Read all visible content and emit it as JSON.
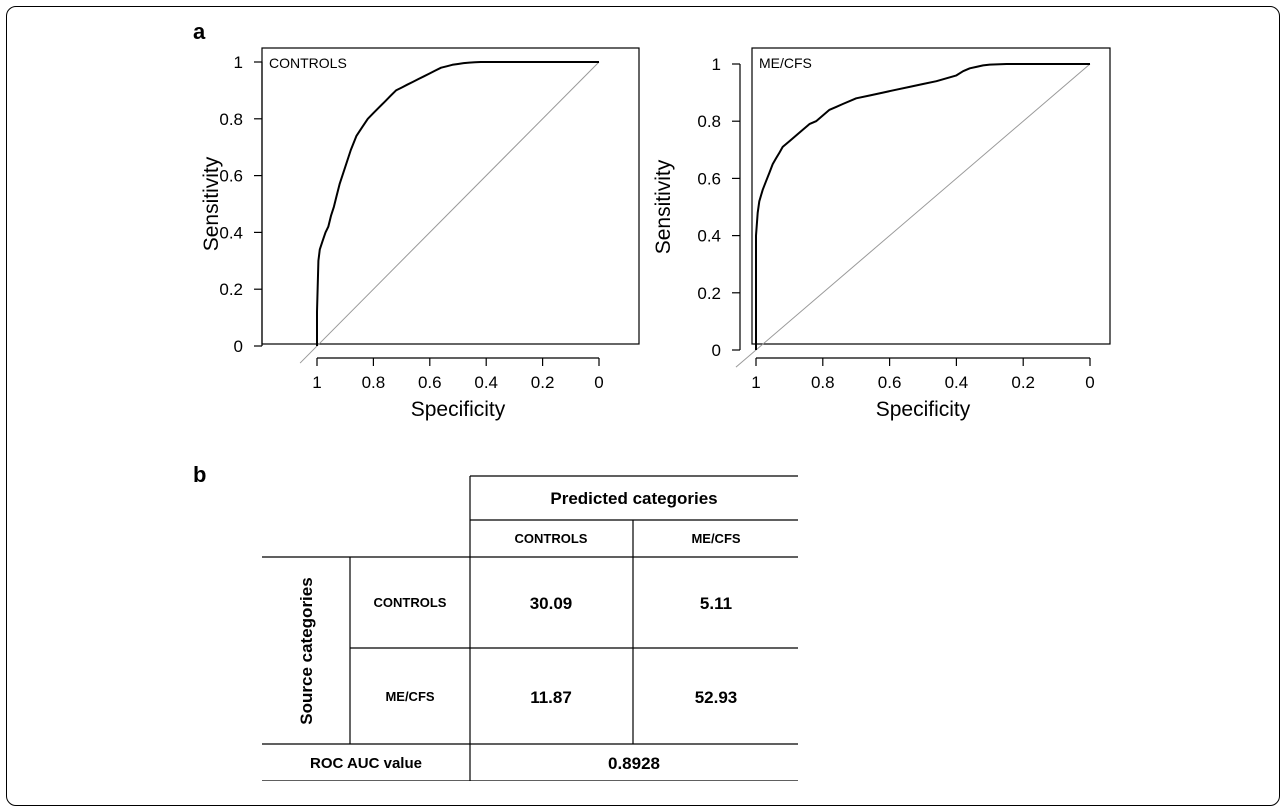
{
  "panel_a_label": "a",
  "panel_b_label": "b",
  "chart_data": [
    {
      "type": "line",
      "panel_text": "CONTROLS",
      "xlabel": "Specificity",
      "ylabel": "Sensitivity",
      "x_reversed": true,
      "xlim": [
        1,
        0
      ],
      "ylim": [
        0,
        1
      ],
      "xticks": [
        "1",
        "0.8",
        "0.6",
        "0.4",
        "0.2",
        "0"
      ],
      "yticks": [
        "0",
        "0.2",
        "0.4",
        "0.6",
        "0.8",
        "1"
      ],
      "series": [
        {
          "specificity": [
            1.0,
            1.0,
            0.995,
            0.99,
            0.98,
            0.97,
            0.96,
            0.95,
            0.94,
            0.93,
            0.92,
            0.9,
            0.88,
            0.86,
            0.84,
            0.82,
            0.8,
            0.78,
            0.76,
            0.74,
            0.72,
            0.7,
            0.68,
            0.66,
            0.64,
            0.62,
            0.6,
            0.58,
            0.56,
            0.54,
            0.52,
            0.5,
            0.48,
            0.46,
            0.44,
            0.42,
            0.4,
            0.38,
            0.36,
            0.3,
            0.2,
            0.1,
            0.0
          ],
          "sensitivity": [
            0.0,
            0.12,
            0.3,
            0.34,
            0.37,
            0.4,
            0.42,
            0.46,
            0.49,
            0.53,
            0.57,
            0.63,
            0.69,
            0.74,
            0.77,
            0.8,
            0.82,
            0.84,
            0.86,
            0.88,
            0.9,
            0.91,
            0.92,
            0.93,
            0.94,
            0.95,
            0.96,
            0.97,
            0.98,
            0.985,
            0.99,
            0.993,
            0.996,
            0.998,
            0.999,
            1.0,
            1.0,
            1.0,
            1.0,
            1.0,
            1.0,
            1.0,
            1.0
          ]
        }
      ],
      "reference_line": "diagonal"
    },
    {
      "type": "line",
      "panel_text": "ME/CFS",
      "xlabel": "Specificity",
      "ylabel": "Sensitivity",
      "x_reversed": true,
      "xlim": [
        1,
        0
      ],
      "ylim": [
        0,
        1
      ],
      "xticks": [
        "1",
        "0.8",
        "0.6",
        "0.4",
        "0.2",
        "0"
      ],
      "yticks": [
        "0",
        "0.2",
        "0.4",
        "0.6",
        "0.8",
        "1"
      ],
      "series": [
        {
          "specificity": [
            1.0,
            1.0,
            0.995,
            0.99,
            0.98,
            0.97,
            0.96,
            0.95,
            0.94,
            0.93,
            0.92,
            0.9,
            0.88,
            0.86,
            0.84,
            0.82,
            0.8,
            0.78,
            0.76,
            0.74,
            0.7,
            0.66,
            0.62,
            0.58,
            0.54,
            0.5,
            0.46,
            0.43,
            0.4,
            0.38,
            0.36,
            0.34,
            0.32,
            0.3,
            0.25,
            0.2,
            0.1,
            0.0
          ],
          "sensitivity": [
            0.0,
            0.4,
            0.48,
            0.52,
            0.56,
            0.59,
            0.62,
            0.65,
            0.67,
            0.69,
            0.71,
            0.73,
            0.75,
            0.77,
            0.79,
            0.8,
            0.82,
            0.84,
            0.85,
            0.86,
            0.88,
            0.89,
            0.9,
            0.91,
            0.92,
            0.93,
            0.94,
            0.95,
            0.96,
            0.975,
            0.985,
            0.99,
            0.995,
            0.998,
            1.0,
            1.0,
            1.0,
            1.0
          ]
        }
      ],
      "reference_line": "diagonal"
    },
    {
      "type": "table",
      "header_group": "Predicted categories",
      "column_headers": [
        "CONTROLS",
        "ME/CFS"
      ],
      "row_group": "Source categories",
      "rows": [
        {
          "label": "CONTROLS",
          "values": [
            "30.09",
            "5.11"
          ]
        },
        {
          "label": "ME/CFS",
          "values": [
            "11.87",
            "52.93"
          ]
        }
      ],
      "footer_label": "ROC AUC value",
      "footer_value": "0.8928"
    }
  ]
}
